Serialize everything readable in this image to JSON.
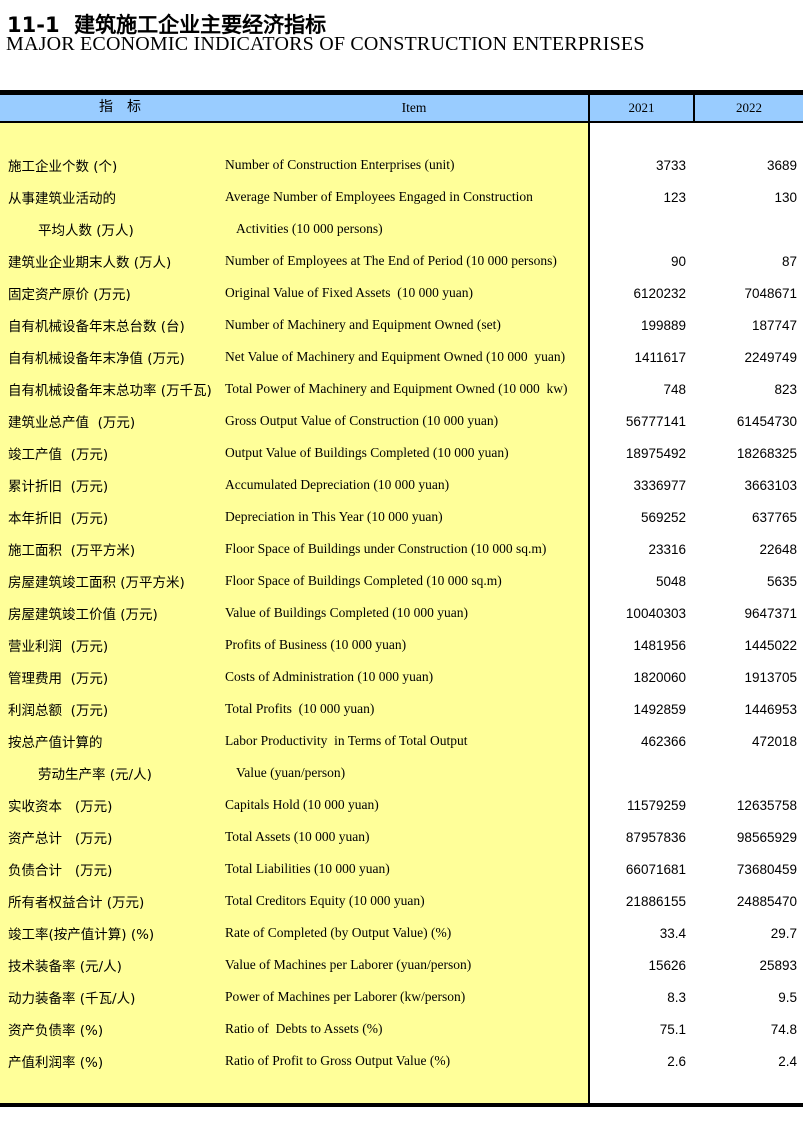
{
  "page": {
    "title_zh": "11-1  建筑施工企业主要经济指标",
    "title_en": "MAJOR ECONOMIC INDICATORS OF CONSTRUCTION ENTERPRISES"
  },
  "colors": {
    "header_bg": "#99CCFF",
    "body_bg": "#FFFF99",
    "border": "#000000"
  },
  "table": {
    "header": {
      "indicator_zh": "指　标",
      "item": "Item",
      "col_2021": "2021",
      "col_2022": "2022"
    },
    "rows": [
      {
        "zh": "施工企业个数 (个)",
        "en": "Number of Construction Enterprises (unit)",
        "y2021": "3733",
        "y2022": "3689",
        "indent": false
      },
      {
        "zh": "从事建筑业活动的",
        "en": "Average Number of Employees Engaged in Construction",
        "y2021": "123",
        "y2022": "130",
        "indent": false
      },
      {
        "zh": "平均人数 (万人)",
        "en": "Activities (10 000 persons)",
        "y2021": "",
        "y2022": "",
        "indent": true
      },
      {
        "zh": "建筑业企业期末人数 (万人)",
        "en": "Number of Employees at The End of Period (10 000 persons)",
        "y2021": "90",
        "y2022": "87",
        "indent": false
      },
      {
        "zh": "固定资产原价 (万元)",
        "en": "Original Value of Fixed Assets  (10 000 yuan)",
        "y2021": "6120232",
        "y2022": "7048671",
        "indent": false
      },
      {
        "zh": "自有机械设备年末总台数 (台)",
        "en": "Number of Machinery and Equipment Owned (set)",
        "y2021": "199889",
        "y2022": "187747",
        "indent": false
      },
      {
        "zh": "自有机械设备年末净值 (万元)",
        "en": "Net Value of Machinery and Equipment Owned (10 000  yuan)",
        "y2021": "1411617",
        "y2022": "2249749",
        "indent": false
      },
      {
        "zh": "自有机械设备年末总功率 (万千瓦)",
        "en": "Total Power of Machinery and Equipment Owned (10 000  kw)",
        "y2021": "748",
        "y2022": "823",
        "indent": false
      },
      {
        "zh": "建筑业总产值  (万元)",
        "en": "Gross Output Value of Construction (10 000 yuan)",
        "y2021": "56777141",
        "y2022": "61454730",
        "indent": false
      },
      {
        "zh": "竣工产值  (万元)",
        "en": "Output Value of Buildings Completed (10 000 yuan)",
        "y2021": "18975492",
        "y2022": "18268325",
        "indent": false
      },
      {
        "zh": "累计折旧  (万元)",
        "en": "Accumulated Depreciation (10 000 yuan)",
        "y2021": "3336977",
        "y2022": "3663103",
        "indent": false
      },
      {
        "zh": "本年折旧  (万元)",
        "en": "Depreciation in This Year (10 000 yuan)",
        "y2021": "569252",
        "y2022": "637765",
        "indent": false
      },
      {
        "zh": "施工面积  (万平方米)",
        "en": "Floor Space of Buildings under Construction (10 000 sq.m)",
        "y2021": "23316",
        "y2022": "22648",
        "indent": false
      },
      {
        "zh": "房屋建筑竣工面积 (万平方米)",
        "en": "Floor Space of Buildings Completed (10 000 sq.m)",
        "y2021": "5048",
        "y2022": "5635",
        "indent": false
      },
      {
        "zh": "房屋建筑竣工价值 (万元)",
        "en": "Value of Buildings Completed (10 000 yuan)",
        "y2021": "10040303",
        "y2022": "9647371",
        "indent": false
      },
      {
        "zh": "营业利润  (万元)",
        "en": "Profits of Business (10 000 yuan)",
        "y2021": "1481956",
        "y2022": "1445022",
        "indent": false
      },
      {
        "zh": "管理费用  (万元)",
        "en": "Costs of Administration (10 000 yuan)",
        "y2021": "1820060",
        "y2022": "1913705",
        "indent": false
      },
      {
        "zh": "利润总额  (万元)",
        "en": "Total Profits  (10 000 yuan)",
        "y2021": "1492859",
        "y2022": "1446953",
        "indent": false
      },
      {
        "zh": "按总产值计算的",
        "en": "Labor Productivity  in Terms of Total Output",
        "y2021": "462366",
        "y2022": "472018",
        "indent": false
      },
      {
        "zh": "劳动生产率 (元/人)",
        "en": "Value (yuan/person)",
        "y2021": "",
        "y2022": "",
        "indent": true
      },
      {
        "zh": "实收资本   (万元)",
        "en": "Capitals Hold (10 000 yuan)",
        "y2021": "11579259",
        "y2022": "12635758",
        "indent": false
      },
      {
        "zh": "资产总计   (万元)",
        "en": "Total Assets (10 000 yuan)",
        "y2021": "87957836",
        "y2022": "98565929",
        "indent": false
      },
      {
        "zh": "负债合计   (万元)",
        "en": "Total Liabilities (10 000 yuan)",
        "y2021": "66071681",
        "y2022": "73680459",
        "indent": false
      },
      {
        "zh": "所有者权益合计 (万元)",
        "en": "Total Creditors Equity (10 000 yuan)",
        "y2021": "21886155",
        "y2022": "24885470",
        "indent": false
      },
      {
        "zh": "竣工率(按产值计算) (%)",
        "en": "Rate of Completed (by Output Value) (%)",
        "y2021": "33.4",
        "y2022": "29.7",
        "indent": false
      },
      {
        "zh": "技术装备率 (元/人)",
        "en": "Value of Machines per Laborer (yuan/person)",
        "y2021": "15626",
        "y2022": "25893",
        "indent": false
      },
      {
        "zh": "动力装备率 (千瓦/人)",
        "en": "Power of Machines per Laborer (kw/person)",
        "y2021": "8.3",
        "y2022": "9.5",
        "indent": false
      },
      {
        "zh": "资产负债率 (%)",
        "en": "Ratio of  Debts to Assets (%)",
        "y2021": "75.1",
        "y2022": "74.8",
        "indent": false
      },
      {
        "zh": "产值利润率 (%)",
        "en": "Ratio of Profit to Gross Output Value (%)",
        "y2021": "2.6",
        "y2022": "2.4",
        "indent": false
      }
    ]
  }
}
